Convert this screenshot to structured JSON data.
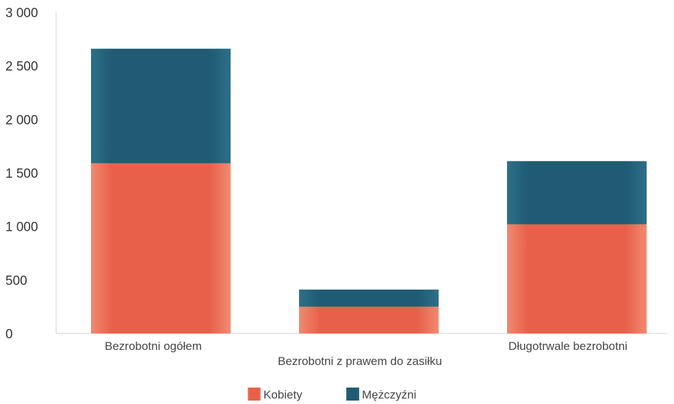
{
  "chart_data": {
    "type": "bar",
    "stacked": true,
    "categories": [
      "Bezrobotni ogółem",
      "Bezrobotni z prawem do zasiłku",
      "Długotrwale bezrobotni"
    ],
    "series": [
      {
        "name": "Kobiety",
        "values": [
          1590,
          250,
          1020
        ],
        "color": "#e8604a"
      },
      {
        "name": "Mężczyźni",
        "values": [
          1070,
          160,
          590
        ],
        "color": "#1f5b73"
      }
    ],
    "ylim": [
      0,
      3000
    ],
    "yticks": [
      0,
      500,
      1000,
      1500,
      2000,
      2500,
      3000
    ],
    "ytick_labels": [
      "0",
      "500",
      "1 000",
      "1 500",
      "2 000",
      "2 500",
      "3 000"
    ],
    "title": "",
    "xlabel": "",
    "ylabel": "",
    "grid": false,
    "legend_position": "bottom"
  }
}
